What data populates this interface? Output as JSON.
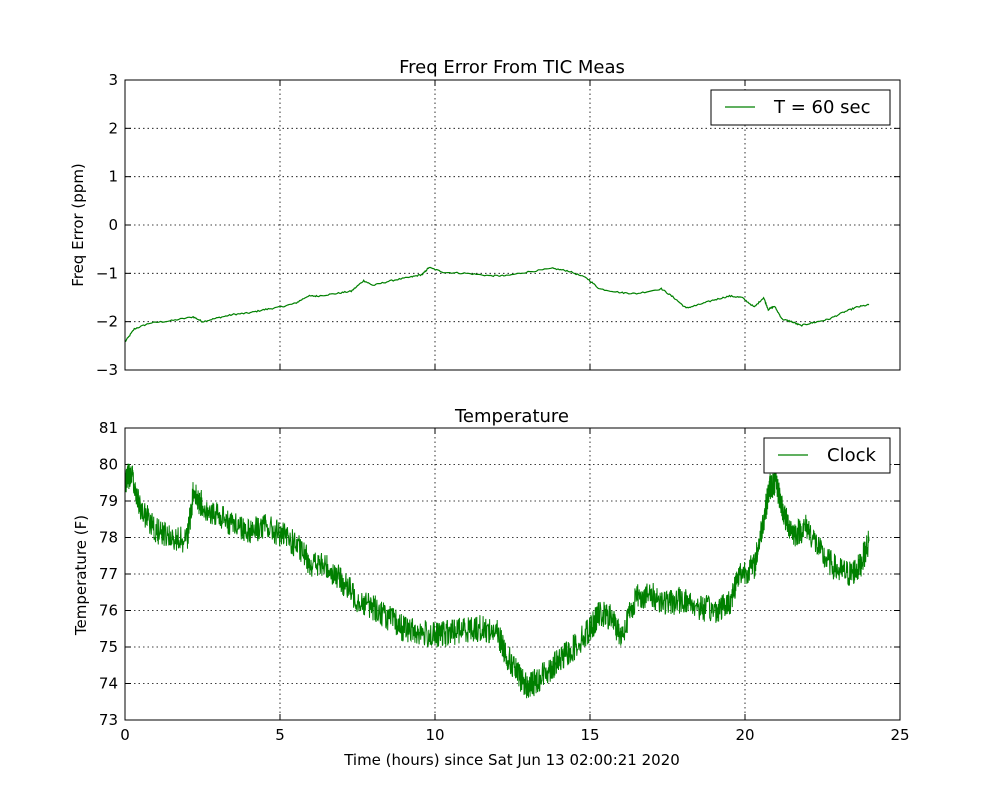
{
  "chart_data": [
    {
      "type": "line",
      "title": "Freq Error From TIC Meas",
      "ylabel": "Freq Error (ppm)",
      "xlabel": "",
      "xlim": [
        0,
        25
      ],
      "ylim": [
        -3,
        3
      ],
      "xticks": [
        0,
        5,
        10,
        15,
        20,
        25
      ],
      "yticks": [
        -3,
        -2,
        -1,
        0,
        1,
        2,
        3
      ],
      "grid": true,
      "legend": "top-right",
      "colors": {
        "line": "#008000"
      },
      "series": [
        {
          "name": "T = 60 sec",
          "x": [
            0,
            0.3,
            0.8,
            1.5,
            2.2,
            2.5,
            3,
            3.5,
            4,
            4.5,
            5,
            5.5,
            5.9,
            6.2,
            6.8,
            7.3,
            7.7,
            8.0,
            8.6,
            9.2,
            9.6,
            9.8,
            10.3,
            11,
            11.8,
            12.3,
            13,
            13.8,
            14.3,
            14.9,
            15.3,
            16,
            16.5,
            17.3,
            17.7,
            18.1,
            18.5,
            19,
            19.5,
            19.9,
            20.3,
            20.6,
            20.75,
            20.95,
            21.2,
            21.5,
            21.8,
            22.2,
            22.7,
            23.2,
            23.6,
            24.0
          ],
          "y": [
            -2.42,
            -2.15,
            -2.03,
            -1.98,
            -1.9,
            -2.0,
            -1.92,
            -1.85,
            -1.82,
            -1.75,
            -1.7,
            -1.62,
            -1.47,
            -1.47,
            -1.42,
            -1.37,
            -1.15,
            -1.25,
            -1.15,
            -1.08,
            -1.02,
            -0.88,
            -0.98,
            -1.0,
            -1.05,
            -1.05,
            -0.97,
            -0.9,
            -0.95,
            -1.1,
            -1.32,
            -1.4,
            -1.42,
            -1.32,
            -1.5,
            -1.72,
            -1.65,
            -1.55,
            -1.47,
            -1.5,
            -1.7,
            -1.5,
            -1.75,
            -1.68,
            -1.95,
            -2.0,
            -2.08,
            -2.02,
            -1.95,
            -1.8,
            -1.7,
            -1.65
          ]
        }
      ]
    },
    {
      "type": "line",
      "title": "Temperature",
      "ylabel": "Temperature (F)",
      "xlabel": "Time (hours) since Sat Jun 13 02:00:21 2020",
      "xlim": [
        0,
        25
      ],
      "ylim": [
        73,
        81
      ],
      "xticks": [
        0,
        5,
        10,
        15,
        20,
        25
      ],
      "yticks": [
        73,
        74,
        75,
        76,
        77,
        78,
        79,
        80,
        81
      ],
      "grid": true,
      "legend": "top-right",
      "colors": {
        "line": "#008000"
      },
      "series": [
        {
          "name": "Clock",
          "x": [
            0,
            0.2,
            0.5,
            1.0,
            1.5,
            2.0,
            2.2,
            2.5,
            3.0,
            3.5,
            4.0,
            4.5,
            5.0,
            5.5,
            6.0,
            6.5,
            7.0,
            7.5,
            8.0,
            8.5,
            9.0,
            9.5,
            10.0,
            10.5,
            11.0,
            11.5,
            12.0,
            12.3,
            12.7,
            13.0,
            13.3,
            13.7,
            14.0,
            14.5,
            15.0,
            15.3,
            15.7,
            16.0,
            16.5,
            17.0,
            17.5,
            18.0,
            18.5,
            19.0,
            19.5,
            19.8,
            20.3,
            20.6,
            20.8,
            21.0,
            21.3,
            21.6,
            22.0,
            22.5,
            23.0,
            23.4,
            23.7,
            24.0
          ],
          "y": [
            79.5,
            79.8,
            78.8,
            78.2,
            78.0,
            77.9,
            79.2,
            78.9,
            78.6,
            78.4,
            78.2,
            78.3,
            78.1,
            77.8,
            77.3,
            77.2,
            76.8,
            76.3,
            76.1,
            75.8,
            75.5,
            75.4,
            75.3,
            75.4,
            75.5,
            75.5,
            75.4,
            74.8,
            74.2,
            73.9,
            74.1,
            74.4,
            74.6,
            75.0,
            75.5,
            75.9,
            75.8,
            75.3,
            76.4,
            76.4,
            76.2,
            76.3,
            76.1,
            76.0,
            76.2,
            77.0,
            77.2,
            78.5,
            79.4,
            79.5,
            78.5,
            78.1,
            78.3,
            77.5,
            77.1,
            77.0,
            77.2,
            77.9
          ]
        }
      ]
    }
  ]
}
